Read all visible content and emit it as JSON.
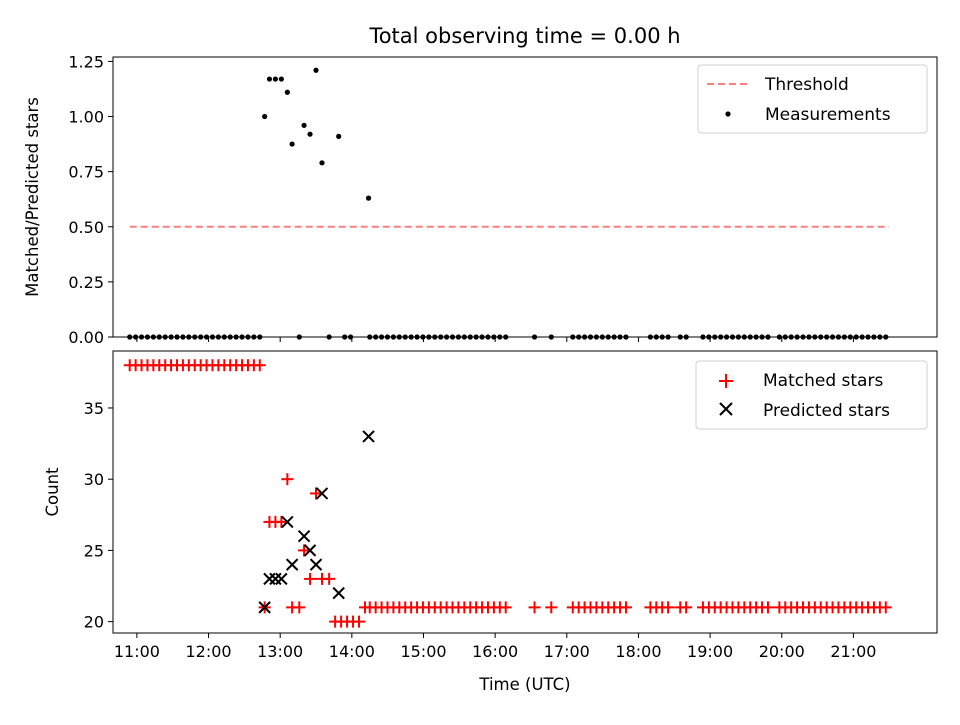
{
  "chart_data": [
    {
      "type": "scatter",
      "title": "Total observing time = 0.00 h",
      "xlabel": "",
      "ylabel": "Matched/Predicted stars",
      "xlim": [
        "10:40",
        "22:10"
      ],
      "ylim": [
        0,
        1.27
      ],
      "x_ticks": [
        "11:00",
        "12:00",
        "13:00",
        "14:00",
        "15:00",
        "16:00",
        "17:00",
        "18:00",
        "19:00",
        "20:00",
        "21:00"
      ],
      "y_ticks": [
        "0.00",
        "0.25",
        "0.50",
        "0.75",
        "1.00",
        "1.25"
      ],
      "grid": false,
      "legend": "top-right",
      "series": [
        {
          "name": "Threshold",
          "kind": "dashed-line",
          "color": "#ff7f7f",
          "x": [
            "10:54",
            "21:30"
          ],
          "y": [
            0.5,
            0.5
          ]
        },
        {
          "name": "Measurements",
          "kind": "points",
          "color": "#000000",
          "points": [
            [
              "12:47",
              1.0
            ],
            [
              "12:51",
              1.17
            ],
            [
              "12:56",
              1.17
            ],
            [
              "13:01",
              1.17
            ],
            [
              "13:06",
              1.11
            ],
            [
              "13:10",
              0.875
            ],
            [
              "13:20",
              0.96
            ],
            [
              "13:25",
              0.92
            ],
            [
              "13:30",
              1.21
            ],
            [
              "13:35",
              0.79
            ],
            [
              "13:49",
              0.91
            ],
            [
              "14:14",
              0.63
            ],
            [
              "13:16",
              0.0
            ],
            [
              "13:41",
              0.0
            ]
          ],
          "zero_ranges": [
            [
              "10:54",
              "12:43"
            ],
            [
              "13:54",
              "14:03"
            ],
            [
              "14:15",
              "16:13"
            ],
            [
              "16:33",
              "16:37"
            ],
            [
              "16:47",
              "16:51"
            ],
            [
              "17:05",
              "17:54"
            ],
            [
              "18:10",
              "18:27"
            ],
            [
              "18:35",
              "18:44"
            ],
            [
              "18:54",
              "19:49"
            ],
            [
              "19:58",
              "21:30"
            ]
          ]
        }
      ]
    },
    {
      "type": "scatter",
      "title": "",
      "xlabel": "Time (UTC)",
      "ylabel": "Count",
      "xlim": [
        "10:40",
        "22:10"
      ],
      "ylim": [
        19.2,
        39.0
      ],
      "x_ticks": [
        "11:00",
        "12:00",
        "13:00",
        "14:00",
        "15:00",
        "16:00",
        "17:00",
        "18:00",
        "19:00",
        "20:00",
        "21:00"
      ],
      "y_ticks": [
        "20",
        "25",
        "30",
        "35"
      ],
      "grid": false,
      "legend": "top-right",
      "series": [
        {
          "name": "Matched stars",
          "marker": "plus",
          "color": "#ff0000",
          "points": [
            [
              "12:47",
              21
            ],
            [
              "12:51",
              27
            ],
            [
              "12:56",
              27
            ],
            [
              "13:01",
              27
            ],
            [
              "13:06",
              30
            ],
            [
              "13:10",
              21
            ],
            [
              "13:16",
              21
            ],
            [
              "13:20",
              25
            ],
            [
              "13:25",
              23
            ],
            [
              "13:30",
              29
            ],
            [
              "13:35",
              23
            ],
            [
              "13:41",
              23
            ],
            [
              "13:46",
              20
            ],
            [
              "13:51",
              20
            ],
            [
              "13:56",
              20
            ],
            [
              "14:01",
              20
            ],
            [
              "14:06",
              20
            ],
            [
              "14:11",
              21
            ]
          ],
          "ranges": [
            {
              "from": "10:54",
              "to": "12:43",
              "value": 38
            },
            {
              "from": "14:15",
              "to": "16:13",
              "value": 21
            },
            {
              "from": "16:33",
              "to": "16:37",
              "value": 21
            },
            {
              "from": "16:47",
              "to": "16:51",
              "value": 21
            },
            {
              "from": "17:05",
              "to": "17:54",
              "value": 21
            },
            {
              "from": "18:10",
              "to": "18:27",
              "value": 21
            },
            {
              "from": "18:35",
              "to": "18:44",
              "value": 21
            },
            {
              "from": "18:54",
              "to": "19:49",
              "value": 21
            },
            {
              "from": "19:58",
              "to": "21:30",
              "value": 21
            }
          ]
        },
        {
          "name": "Predicted stars",
          "marker": "x",
          "color": "#000000",
          "points": [
            [
              "12:47",
              21
            ],
            [
              "12:51",
              23
            ],
            [
              "12:56",
              23
            ],
            [
              "13:01",
              23
            ],
            [
              "13:06",
              27
            ],
            [
              "13:10",
              24
            ],
            [
              "13:20",
              26
            ],
            [
              "13:25",
              25
            ],
            [
              "13:30",
              24
            ],
            [
              "13:35",
              29
            ],
            [
              "13:49",
              22
            ],
            [
              "14:14",
              33
            ]
          ]
        }
      ]
    }
  ]
}
